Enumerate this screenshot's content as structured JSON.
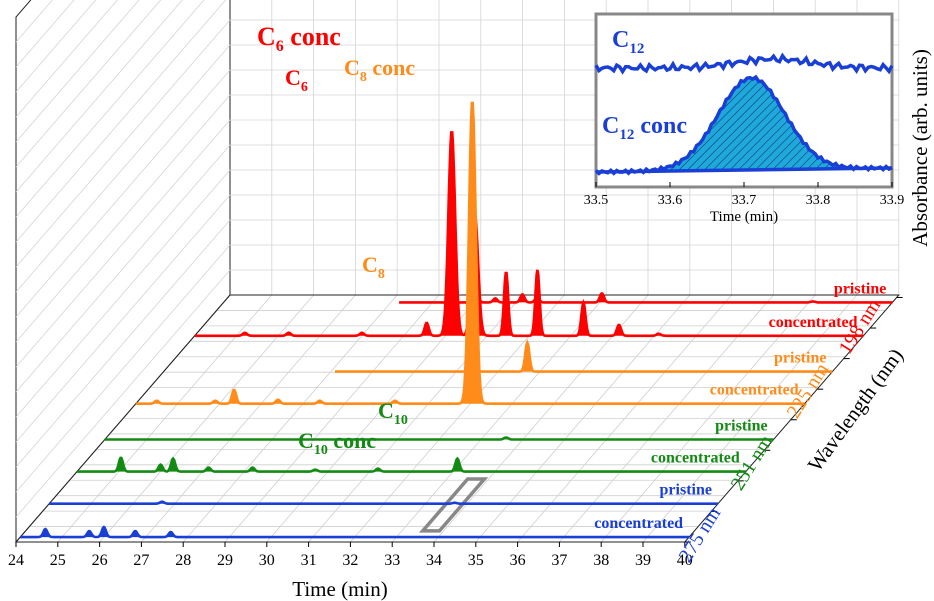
{
  "chart_data": {
    "type": "area",
    "title": "",
    "xlabel": "Time (min)",
    "ylabel": "Absorbance (arb. units)",
    "zlabel": "Wavelength (nm)",
    "xlim": [
      24,
      40
    ],
    "x_ticks": [
      "24",
      "25",
      "26",
      "27",
      "28",
      "29",
      "30",
      "31",
      "32",
      "33",
      "34",
      "35",
      "36",
      "37",
      "38",
      "39",
      "40"
    ],
    "grid": true,
    "colors": {
      "198": "#ff0000",
      "225": "#ff8c1a",
      "251": "#138a13",
      "275": "#1a3fd6",
      "frame": "#888888"
    },
    "wavelength_labels": [
      {
        "text": "198 nm",
        "color": "#ff0000"
      },
      {
        "text": "225 nm",
        "color": "#ff8c1a"
      },
      {
        "text": "251 nm",
        "color": "#138a13"
      },
      {
        "text": "275 nm",
        "color": "#1a3fd6"
      }
    ],
    "series": [
      {
        "name": "pristine",
        "wavelength": "198",
        "peaks": [
          [
            30.02,
            40
          ],
          [
            30.5,
            4
          ],
          [
            31.15,
            8
          ],
          [
            31.5,
            5
          ],
          [
            33.05,
            9
          ],
          [
            38.1,
            1
          ]
        ]
      },
      {
        "name": "concentrated",
        "wavelength": "198",
        "peaks": [
          [
            25.2,
            3
          ],
          [
            26.25,
            3
          ],
          [
            28.0,
            3
          ],
          [
            29.55,
            13
          ],
          [
            30.15,
            205
          ],
          [
            30.7,
            123
          ],
          [
            31.45,
            64
          ],
          [
            32.2,
            66
          ],
          [
            33.3,
            33
          ],
          [
            34.15,
            11
          ],
          [
            35.1,
            2
          ]
        ]
      },
      {
        "name": "pristine",
        "wavelength": "225",
        "peaks": [
          [
            32.7,
            29
          ]
        ]
      },
      {
        "name": "concentrated",
        "wavelength": "225",
        "peaks": [
          [
            24.5,
            3
          ],
          [
            25.9,
            3
          ],
          [
            26.35,
            14
          ],
          [
            27.4,
            4
          ],
          [
            28.4,
            3
          ],
          [
            30.2,
            3
          ],
          [
            32.05,
            303
          ]
        ]
      },
      {
        "name": "pristine",
        "wavelength": "251",
        "peaks": [
          [
            33.6,
            2
          ]
        ]
      },
      {
        "name": "concentrated",
        "wavelength": "251",
        "peaks": [
          [
            25.05,
            14
          ],
          [
            26.0,
            7
          ],
          [
            26.3,
            13
          ],
          [
            27.15,
            4
          ],
          [
            28.2,
            4
          ],
          [
            29.7,
            2
          ],
          [
            31.2,
            3
          ],
          [
            33.1,
            13
          ]
        ]
      },
      {
        "name": "pristine",
        "wavelength": "275",
        "peaks": [
          [
            26.7,
            2
          ],
          [
            33.7,
            1
          ]
        ]
      },
      {
        "name": "concentrated",
        "wavelength": "275",
        "peaks": [
          [
            24.6,
            8
          ],
          [
            25.65,
            6
          ],
          [
            26.0,
            10
          ],
          [
            26.75,
            6
          ],
          [
            27.6,
            5
          ]
        ]
      }
    ],
    "annotations": [
      {
        "base": "C",
        "sub": "6",
        "tail": " conc",
        "color": "#ff0000"
      },
      {
        "base": "C",
        "sub": "6",
        "tail": "",
        "color": "#ff0000"
      },
      {
        "base": "C",
        "sub": "8",
        "tail": " conc",
        "color": "#ff8c1a"
      },
      {
        "base": "C",
        "sub": "8",
        "tail": "",
        "color": "#ff8c1a"
      },
      {
        "base": "C",
        "sub": "10",
        "tail": "",
        "color": "#138a13"
      },
      {
        "base": "C",
        "sub": "10",
        "tail": " conc",
        "color": "#138a13"
      }
    ],
    "inset": {
      "xlabel": "Time (min)",
      "xlim": [
        33.5,
        33.9
      ],
      "x_ticks": [
        "33.5",
        "33.6",
        "33.7",
        "33.8",
        "33.9"
      ],
      "series": [
        {
          "name": "C12",
          "label_base": "C",
          "label_sub": "12",
          "label_tail": "",
          "peak_time": 33.74,
          "peak_height": 0.15
        },
        {
          "name": "C12 conc",
          "label_base": "C",
          "label_sub": "12",
          "label_tail": " conc",
          "peak_time": 33.71,
          "peak_height": 0.92
        }
      ]
    }
  }
}
